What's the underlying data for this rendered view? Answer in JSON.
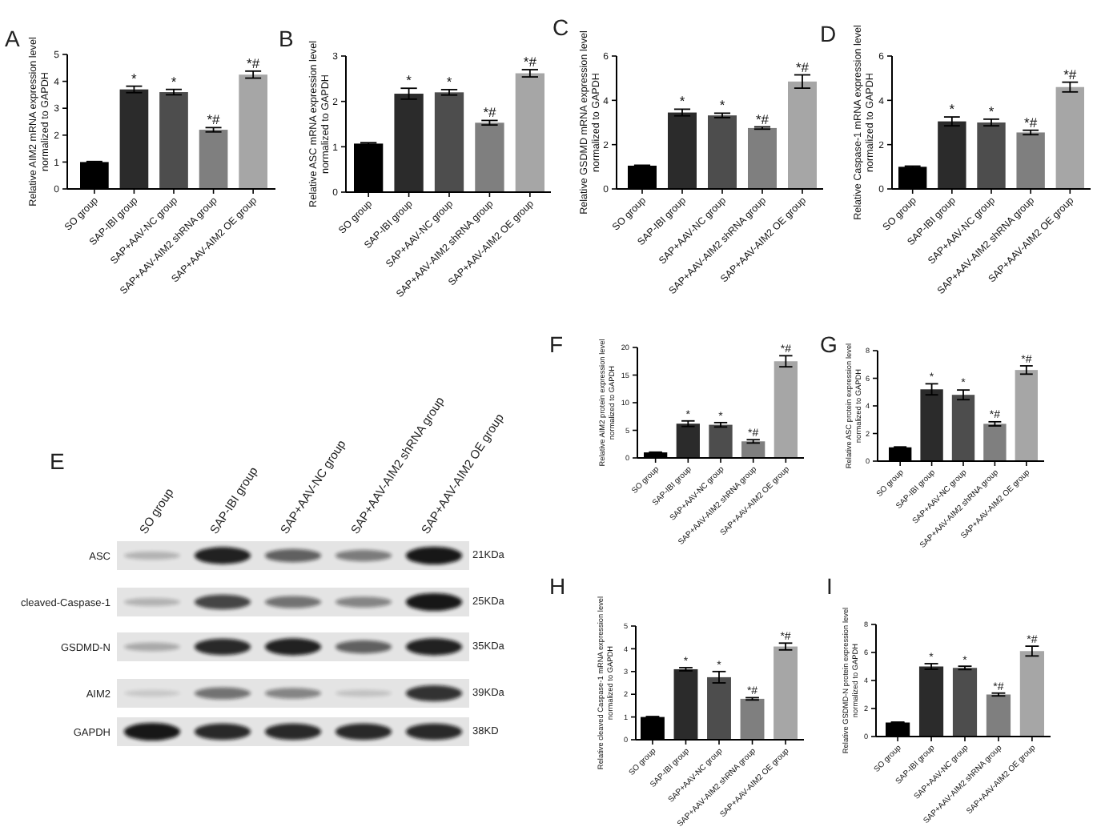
{
  "chart_data": [
    {
      "type": "bar",
      "title": "A",
      "ylabel": "Relative AIM2 mRNA expression level\nnormalized to GAPDH",
      "categories": [
        "SO group",
        "SAP-IBI group",
        "SAP+AAV-NC group",
        "SAP+AAV-AIM2 shRNA group",
        "SAP+AAV-AIM2 OE group"
      ],
      "values": [
        1.0,
        3.7,
        3.6,
        2.2,
        4.25
      ],
      "errors": [
        0.02,
        0.12,
        0.1,
        0.08,
        0.13
      ],
      "colors": [
        "#000000",
        "#2b2b2b",
        "#4d4d4d",
        "#7f7f7f",
        "#a6a6a6"
      ],
      "ylim": [
        0,
        5
      ],
      "yticks": [
        0,
        1,
        2,
        3,
        4,
        5
      ],
      "annotations": [
        {
          "text": "*",
          "x": "SAP-IBI group",
          "y": 3.82
        },
        {
          "text": "*",
          "x": "SAP+AAV-NC group",
          "y": 3.7
        },
        {
          "text": "*#",
          "x": "SAP+AAV-AIM2 shRNA group",
          "y": 2.28
        },
        {
          "text": "*#",
          "x": "SAP+AAV-AIM2 OE group",
          "y": 4.38
        }
      ]
    },
    {
      "type": "bar",
      "title": "B",
      "ylabel": "Relative ASC mRNA expression level\nnormalized to GAPDH",
      "categories": [
        "SO group",
        "SAP-IBI group",
        "SAP+AAV-NC group",
        "SAP+AAV-AIM2 shRNA group",
        "SAP+AAV-AIM2 OE group"
      ],
      "values": [
        1.07,
        2.17,
        2.2,
        1.53,
        2.62
      ],
      "errors": [
        0.02,
        0.12,
        0.06,
        0.05,
        0.08
      ],
      "colors": [
        "#000000",
        "#2b2b2b",
        "#4d4d4d",
        "#7f7f7f",
        "#a6a6a6"
      ],
      "ylim": [
        0,
        3
      ],
      "yticks": [
        0,
        1,
        2,
        3
      ],
      "annotations": [
        {
          "text": "*",
          "x": "SAP-IBI group",
          "y": 2.29
        },
        {
          "text": "*",
          "x": "SAP+AAV-NC group",
          "y": 2.26
        },
        {
          "text": "*#",
          "x": "SAP+AAV-AIM2 shRNA group",
          "y": 1.58
        },
        {
          "text": "*#",
          "x": "SAP+AAV-AIM2 OE group",
          "y": 2.7
        }
      ]
    },
    {
      "type": "bar",
      "title": "C",
      "ylabel": "Relative GSDMD mRNA expression level\nnormalized to GAPDH",
      "categories": [
        "SO group",
        "SAP-IBI group",
        "SAP+AAV-NC group",
        "SAP+AAV-AIM2 shRNA group",
        "SAP+AAV-AIM2 OE group"
      ],
      "values": [
        1.05,
        3.45,
        3.32,
        2.75,
        4.85
      ],
      "errors": [
        0.02,
        0.15,
        0.1,
        0.05,
        0.3
      ],
      "colors": [
        "#000000",
        "#2b2b2b",
        "#4d4d4d",
        "#7f7f7f",
        "#a6a6a6"
      ],
      "ylim": [
        0,
        6
      ],
      "yticks": [
        0,
        2,
        4,
        6
      ],
      "annotations": [
        {
          "text": "*",
          "x": "SAP-IBI group",
          "y": 3.6
        },
        {
          "text": "*",
          "x": "SAP+AAV-NC group",
          "y": 3.42
        },
        {
          "text": "*#",
          "x": "SAP+AAV-AIM2 shRNA group",
          "y": 2.8
        },
        {
          "text": "*#",
          "x": "SAP+AAV-AIM2 OE group",
          "y": 5.15
        }
      ]
    },
    {
      "type": "bar",
      "title": "D",
      "ylabel": "Relative Caspase-1 mRNA expression level\nnormalized to GAPDH",
      "categories": [
        "SO group",
        "SAP-IBI group",
        "SAP+AAV-NC group",
        "SAP+AAV-AIM2 shRNA group",
        "SAP+AAV-AIM2 OE group"
      ],
      "values": [
        1.0,
        3.05,
        3.0,
        2.55,
        4.6
      ],
      "errors": [
        0.03,
        0.2,
        0.15,
        0.1,
        0.22
      ],
      "colors": [
        "#000000",
        "#2b2b2b",
        "#4d4d4d",
        "#7f7f7f",
        "#a6a6a6"
      ],
      "ylim": [
        0,
        6
      ],
      "yticks": [
        0,
        2,
        4,
        6
      ],
      "annotations": [
        {
          "text": "*",
          "x": "SAP-IBI group",
          "y": 3.25
        },
        {
          "text": "*",
          "x": "SAP+AAV-NC group",
          "y": 3.15
        },
        {
          "text": "*#",
          "x": "SAP+AAV-AIM2 shRNA group",
          "y": 2.65
        },
        {
          "text": "*#",
          "x": "SAP+AAV-AIM2 OE group",
          "y": 4.82
        }
      ]
    },
    {
      "type": "other",
      "title": "E",
      "categories": [
        "SO group",
        "SAP-IBI group",
        "SAP+AAV-NC group",
        "SAP+AAV-AIM2 shRNA group",
        "SAP+AAV-AIM2 OE group"
      ],
      "y_categories": [
        "ASC",
        "cleaved-Caspase-1",
        "GSDMD-N",
        "AIM2",
        "GAPDH"
      ],
      "y2_categories": [
        "21KDa",
        "25KDa",
        "35KDa",
        "39KDa",
        "38KD"
      ]
    },
    {
      "type": "bar",
      "title": "F",
      "ylabel": "Relative AIM2 protein expression level\nnormalized to GAPDH",
      "categories": [
        "SO group",
        "SAP-IBI group",
        "SAP+AAV-NC group",
        "SAP+AAV-AIM2 shRNA group",
        "SAP+AAV-AIM2 OE group"
      ],
      "values": [
        1.0,
        6.2,
        6.0,
        3.0,
        17.5
      ],
      "errors": [
        0.05,
        0.5,
        0.4,
        0.3,
        1.0
      ],
      "colors": [
        "#000000",
        "#2b2b2b",
        "#4d4d4d",
        "#7f7f7f",
        "#a6a6a6"
      ],
      "ylim": [
        0,
        20
      ],
      "yticks": [
        0,
        5,
        10,
        15,
        20
      ],
      "annotations": [
        {
          "text": "*",
          "x": "SAP-IBI group",
          "y": 6.7
        },
        {
          "text": "*",
          "x": "SAP+AAV-NC group",
          "y": 6.4
        },
        {
          "text": "*#",
          "x": "SAP+AAV-AIM2 shRNA group",
          "y": 3.3
        },
        {
          "text": "*#",
          "x": "SAP+AAV-AIM2 OE group",
          "y": 18.5
        }
      ]
    },
    {
      "type": "bar",
      "title": "G",
      "ylabel": "Relative ASC protein expression level\nnormalized to GAPDH",
      "categories": [
        "SO group",
        "SAP-IBI group",
        "SAP+AAV-NC group",
        "SAP+AAV-AIM2 shRNA group",
        "SAP+AAV-AIM2 OE group"
      ],
      "values": [
        1.0,
        5.2,
        4.8,
        2.7,
        6.6
      ],
      "errors": [
        0.03,
        0.4,
        0.35,
        0.15,
        0.3
      ],
      "colors": [
        "#000000",
        "#2b2b2b",
        "#4d4d4d",
        "#7f7f7f",
        "#a6a6a6"
      ],
      "ylim": [
        0,
        8
      ],
      "yticks": [
        0,
        2,
        4,
        6,
        8
      ],
      "annotations": [
        {
          "text": "*",
          "x": "SAP-IBI group",
          "y": 5.6
        },
        {
          "text": "*",
          "x": "SAP+AAV-NC group",
          "y": 5.2
        },
        {
          "text": "*#",
          "x": "SAP+AAV-AIM2 shRNA group",
          "y": 2.9
        },
        {
          "text": "*#",
          "x": "SAP+AAV-AIM2 OE group",
          "y": 6.9
        }
      ]
    },
    {
      "type": "bar",
      "title": "H",
      "ylabel": "Relative cleaved Caspase-1 mRNA expression level\nnormalized to GAPDH",
      "categories": [
        "SO group",
        "SAP-IBI group",
        "SAP+AAV-NC group",
        "SAP+AAV-AIM2 shRNA group",
        "SAP+AAV-AIM2 OE group"
      ],
      "values": [
        1.0,
        3.1,
        2.75,
        1.8,
        4.1
      ],
      "errors": [
        0.02,
        0.07,
        0.25,
        0.05,
        0.15
      ],
      "colors": [
        "#000000",
        "#2b2b2b",
        "#4d4d4d",
        "#7f7f7f",
        "#a6a6a6"
      ],
      "ylim": [
        0,
        5
      ],
      "yticks": [
        0,
        1,
        2,
        3,
        4,
        5
      ],
      "annotations": [
        {
          "text": "*",
          "x": "SAP-IBI group",
          "y": 3.17
        },
        {
          "text": "*",
          "x": "SAP+AAV-NC group",
          "y": 3.0
        },
        {
          "text": "*#",
          "x": "SAP+AAV-AIM2 shRNA group",
          "y": 1.85
        },
        {
          "text": "*#",
          "x": "SAP+AAV-AIM2 OE group",
          "y": 4.25
        }
      ]
    },
    {
      "type": "bar",
      "title": "I",
      "ylabel": "Relative GSDMD-N protein expression level\nnormalized to GAPDH",
      "categories": [
        "SO group",
        "SAP-IBI group",
        "SAP+AAV-NC group",
        "SAP+AAV-AIM2 shRNA group",
        "SAP+AAV-AIM2 OE group"
      ],
      "values": [
        1.0,
        5.0,
        4.9,
        3.0,
        6.1
      ],
      "errors": [
        0.03,
        0.2,
        0.12,
        0.1,
        0.35
      ],
      "colors": [
        "#000000",
        "#2b2b2b",
        "#4d4d4d",
        "#7f7f7f",
        "#a6a6a6"
      ],
      "ylim": [
        0,
        8
      ],
      "yticks": [
        0,
        2,
        4,
        6,
        8
      ],
      "annotations": [
        {
          "text": "*",
          "x": "SAP-IBI group",
          "y": 5.2
        },
        {
          "text": "*",
          "x": "SAP+AAV-NC group",
          "y": 5.0
        },
        {
          "text": "*#",
          "x": "SAP+AAV-AIM2 shRNA group",
          "y": 3.1
        },
        {
          "text": "*#",
          "x": "SAP+AAV-AIM2 OE group",
          "y": 6.45
        }
      ]
    }
  ]
}
